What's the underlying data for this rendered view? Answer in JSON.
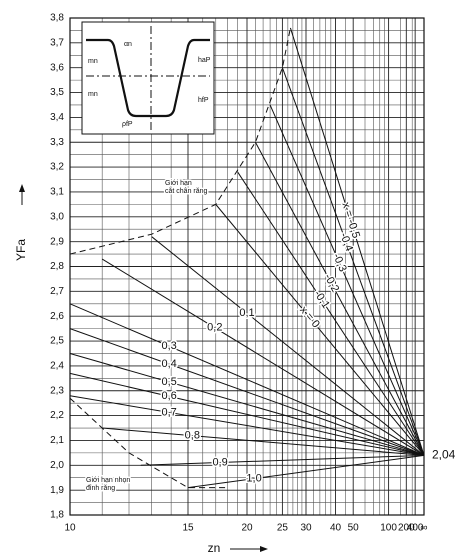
{
  "chart_data": {
    "type": "line",
    "x_label": "zn",
    "y_label": "YFa",
    "xscale": "reciprocal",
    "xlim": [
      10,
      null
    ],
    "ylim": [
      1.8,
      3.8
    ],
    "xticks": [
      10,
      15,
      20,
      25,
      30,
      40,
      50,
      100,
      200,
      400,
      {
        "value": null,
        "label": "∞"
      }
    ],
    "xminor": [
      11,
      12,
      13,
      14,
      16,
      17,
      18,
      19,
      21,
      22,
      23,
      24,
      26,
      27,
      28,
      29,
      32,
      34,
      36,
      38,
      45,
      60,
      70,
      80,
      90,
      150,
      300
    ],
    "yticks": [
      {
        "value": 1.8,
        "label": "1,8"
      },
      {
        "value": 1.9,
        "label": "1,9"
      },
      {
        "value": 2.0,
        "label": "2,0"
      },
      {
        "value": 2.1,
        "label": "2,1"
      },
      {
        "value": 2.2,
        "label": "2,2"
      },
      {
        "value": 2.3,
        "label": "2,3"
      },
      {
        "value": 2.4,
        "label": "2,4"
      },
      {
        "value": 2.5,
        "label": "2,5"
      },
      {
        "value": 2.6,
        "label": "2,6"
      },
      {
        "value": 2.7,
        "label": "2,7"
      },
      {
        "value": 2.8,
        "label": "2,8"
      },
      {
        "value": 2.9,
        "label": "2,9"
      },
      {
        "value": 3.0,
        "label": "3,0"
      },
      {
        "value": 3.1,
        "label": "3,1"
      },
      {
        "value": 3.2,
        "label": "3,2"
      },
      {
        "value": 3.3,
        "label": "3,3"
      },
      {
        "value": 3.4,
        "label": "3,4"
      },
      {
        "value": 3.5,
        "label": "3,5"
      },
      {
        "value": 3.6,
        "label": "3,6"
      },
      {
        "value": 3.7,
        "label": "3,7"
      },
      {
        "value": 3.8,
        "label": "3,8"
      }
    ],
    "yminor": [
      1.85,
      1.95,
      2.05,
      2.15,
      2.25,
      2.35,
      2.45,
      2.55,
      2.65,
      2.75,
      2.85,
      2.95,
      3.05,
      3.15,
      3.25,
      3.35,
      3.45,
      3.55,
      3.65,
      3.75
    ],
    "grid": true,
    "color": "#111111",
    "convergence": {
      "value": 2.04,
      "label": "2,04"
    },
    "series": [
      {
        "name": "x = -0,5",
        "x": [
          26.5,
          null
        ],
        "values": [
          3.76,
          2.04
        ]
      },
      {
        "name": "-0,4",
        "x": [
          25,
          null
        ],
        "values": [
          3.6,
          2.04
        ]
      },
      {
        "name": "-0,3",
        "x": [
          23,
          null
        ],
        "values": [
          3.45,
          2.04
        ]
      },
      {
        "name": "-0,2",
        "x": [
          21,
          null
        ],
        "values": [
          3.3,
          2.04
        ]
      },
      {
        "name": "-0,1",
        "x": [
          19,
          null
        ],
        "values": [
          3.18,
          2.04
        ]
      },
      {
        "name": "x = 0",
        "x": [
          17,
          null
        ],
        "values": [
          3.05,
          2.04
        ]
      },
      {
        "name": "0,1",
        "x": [
          13,
          null
        ],
        "values": [
          2.92,
          2.04
        ]
      },
      {
        "name": "0,2",
        "x": [
          11,
          null
        ],
        "values": [
          2.83,
          2.04
        ]
      },
      {
        "name": "0,3",
        "x": [
          10,
          null
        ],
        "values": [
          2.65,
          2.04
        ]
      },
      {
        "name": "0,4",
        "x": [
          10,
          null
        ],
        "values": [
          2.55,
          2.04
        ]
      },
      {
        "name": "0,5",
        "x": [
          10,
          null
        ],
        "values": [
          2.45,
          2.04
        ]
      },
      {
        "name": "0,6",
        "x": [
          10,
          null
        ],
        "values": [
          2.37,
          2.04
        ]
      },
      {
        "name": "0,7",
        "x": [
          10,
          null
        ],
        "values": [
          2.28,
          2.04
        ]
      },
      {
        "name": "0,8",
        "x": [
          11,
          null
        ],
        "values": [
          2.15,
          2.04
        ]
      },
      {
        "name": "0,9",
        "x": [
          12.5,
          null
        ],
        "values": [
          2.0,
          2.04
        ]
      },
      {
        "name": "1,0",
        "x": [
          15,
          null
        ],
        "values": [
          1.91,
          2.04
        ]
      }
    ],
    "boundaries": [
      {
        "lines": [
          "Giới hạn",
          "cắt chân răng"
        ],
        "x": [
          10,
          13,
          17,
          21,
          25,
          26.5
        ],
        "values": [
          2.85,
          2.93,
          3.05,
          3.3,
          3.6,
          3.76
        ]
      },
      {
        "lines": [
          "Giới hạn nhọn",
          "đỉnh răng"
        ],
        "x": [
          10,
          12,
          15,
          18
        ],
        "values": [
          2.27,
          2.05,
          1.91,
          1.91
        ]
      }
    ],
    "inset": {
      "labels": [
        "mn",
        "mn",
        "αn",
        "haP",
        "hfP",
        "ρfP"
      ]
    }
  }
}
